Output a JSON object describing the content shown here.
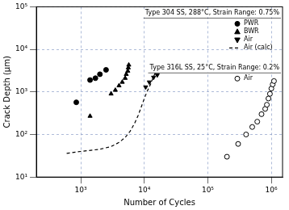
{
  "chart_data": {
    "type": "scatter",
    "x_label": "Number of Cycles",
    "y_label": "Crack Depth (µm)",
    "log": true,
    "grid": true,
    "xlim": [
      200,
      1500000
    ],
    "xticks": [
      {
        "value": 1000,
        "label": "10³"
      },
      {
        "value": 10000,
        "label": "10⁴"
      },
      {
        "value": 100000,
        "label": "10⁵"
      },
      {
        "value": 1000000,
        "label": "10⁶"
      }
    ],
    "ylim": [
      10,
      100000
    ],
    "yticks": [
      {
        "value": 10,
        "label": "10¹"
      },
      {
        "value": 100,
        "label": "10²"
      },
      {
        "value": 1000,
        "label": "10³"
      },
      {
        "value": 10000,
        "label": "10⁴"
      },
      {
        "value": 100000,
        "label": "10⁵"
      }
    ],
    "groups": [
      {
        "title": "Type 304 SS, 288°C, Strain Range: 0.75%",
        "series": [
          {
            "name": "PWR",
            "color": "#000000",
            "marker": "circle",
            "line_style": "none",
            "x": [
              850,
              1400,
              1700,
              2000,
              2500
            ],
            "values": [
              570,
              1900,
              2100,
              2600,
              3300
            ]
          },
          {
            "name": "BWR",
            "color": "#000000",
            "marker": "triangle",
            "line_style": "none",
            "x": [
              1400,
              3000,
              3500,
              4000,
              4500,
              5000,
              5200,
              5500,
              5600,
              5700
            ],
            "values": [
              270,
              900,
              1100,
              1400,
              1700,
              2100,
              2600,
              3100,
              3700,
              4300
            ]
          },
          {
            "name": "Air",
            "color": "#000000",
            "marker": "triangle_down",
            "line_style": "none",
            "x": [
              10500,
              12000,
              14000,
              16000
            ],
            "values": [
              1300,
              1700,
              2200,
              2500
            ]
          },
          {
            "name": "Air (calc)",
            "color": "#000000",
            "marker": "none",
            "line_style": "dashed",
            "x": [
              600,
              1000,
              2000,
              3000,
              4000,
              5000,
              6000,
              7000,
              8000,
              9000,
              10000,
              11000,
              12500,
              14000,
              15500
            ],
            "values": [
              36,
              40,
              45,
              52,
              65,
              85,
              120,
              180,
              280,
              450,
              700,
              1000,
              1500,
              2300,
              3200
            ]
          }
        ]
      },
      {
        "title": "Type 316L SS, 25°C, Strain Range: 0.2%",
        "series": [
          {
            "name": "Air",
            "color": "#000000",
            "marker": "circle_open",
            "line_style": "none",
            "x": [
              200000,
              300000,
              400000,
              500000,
              600000,
              700000,
              800000,
              850000,
              900000,
              950000,
              1000000,
              1050000,
              1100000
            ],
            "values": [
              30,
              60,
              100,
              150,
              200,
              300,
              400,
              500,
              700,
              900,
              1200,
              1500,
              1800
            ]
          }
        ]
      }
    ]
  }
}
